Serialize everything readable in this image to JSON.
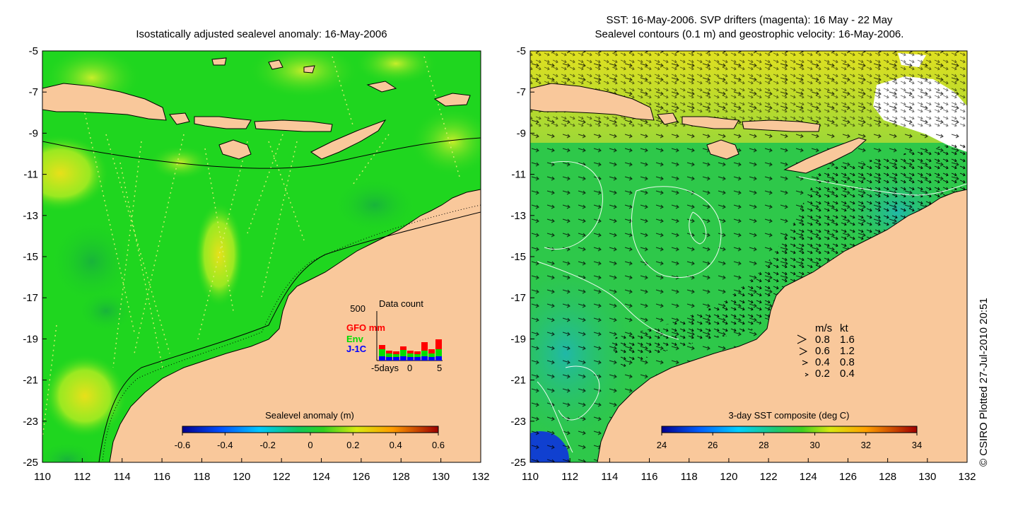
{
  "left_map": {
    "title": "Isostatically adjusted sealevel anomaly: 16-May-2006",
    "x_ticks": [
      "110",
      "112",
      "114",
      "116",
      "118",
      "120",
      "122",
      "124",
      "126",
      "128",
      "130",
      "132"
    ],
    "y_ticks": [
      "-5",
      "-7",
      "-9",
      "-11",
      "-13",
      "-15",
      "-17",
      "-19",
      "-21",
      "-23",
      "-25"
    ],
    "colorbar": {
      "label": "Sealevel anomaly (m)",
      "ticks": [
        "-0.6",
        "-0.4",
        "-0.2",
        "0",
        "0.2",
        "0.4",
        "0.6"
      ]
    },
    "data_count": {
      "title": "Data count",
      "y_max": "500",
      "legend": [
        {
          "label": "GFO mm",
          "color": "#ff0000"
        },
        {
          "label": "Env",
          "color": "#00dd00"
        },
        {
          "label": "J-1C",
          "color": "#0000ff"
        }
      ],
      "x_labels": [
        "-5days",
        "0",
        "5"
      ]
    }
  },
  "right_map": {
    "title_line1": "SST: 16-May-2006. SVP drifters (magenta): 16 May - 22 May",
    "title_line2": "Sealevel contours (0.1 m) and geostrophic velocity: 16-May-2006.",
    "x_ticks": [
      "110",
      "112",
      "114",
      "116",
      "118",
      "120",
      "122",
      "124",
      "126",
      "128",
      "130",
      "132"
    ],
    "y_ticks": [
      "-5",
      "-7",
      "-9",
      "-11",
      "-13",
      "-15",
      "-17",
      "-19",
      "-21",
      "-23",
      "-25"
    ],
    "colorbar": {
      "label": "3-day SST composite (deg C)",
      "ticks": [
        "24",
        "26",
        "28",
        "30",
        "32",
        "34"
      ]
    },
    "velocity_legend": {
      "header_ms": "m/s",
      "header_kt": "kt",
      "rows": [
        {
          "ms": "0.8",
          "kt": "1.6"
        },
        {
          "ms": "0.6",
          "kt": "1.2"
        },
        {
          "ms": "0.4",
          "kt": "0.8"
        },
        {
          "ms": "0.2",
          "kt": "0.4"
        }
      ]
    }
  },
  "footer": {
    "copyright": "© CSIRO Plotted 27-Jul-2010 20:51"
  },
  "colors": {
    "land": "#f9c89b",
    "sea_green": "#1fd61f",
    "sla_yellow": "#b8ee22",
    "sst_green": "#2ec84a",
    "sst_yellow": "#e6e220"
  }
}
